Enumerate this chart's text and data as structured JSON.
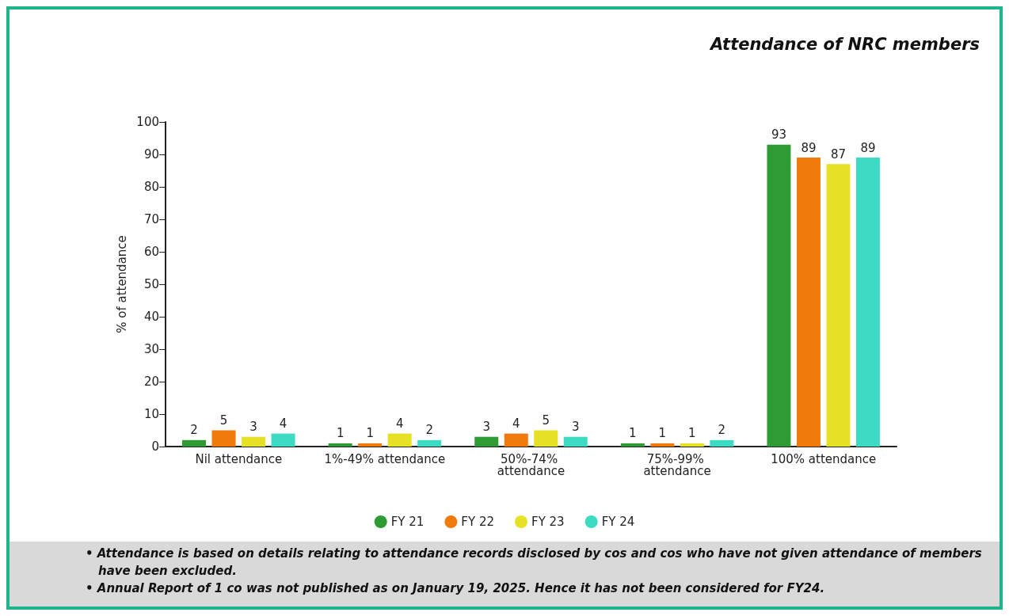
{
  "chart_data": {
    "type": "bar",
    "title": "Attendance of NRC members",
    "ylabel": "% of attendance",
    "categories": [
      "Nil attendance",
      "1%-49% attendance",
      "50%-74% attendance",
      "75%-99% attendance",
      "100% attendance"
    ],
    "series": [
      {
        "name": "FY 21",
        "color": "#2e9b35",
        "values": [
          2,
          1,
          3,
          1,
          93
        ]
      },
      {
        "name": "FY 22",
        "color": "#f07a0c",
        "values": [
          5,
          1,
          4,
          1,
          89
        ]
      },
      {
        "name": "FY 23",
        "color": "#e6e125",
        "values": [
          3,
          4,
          5,
          1,
          87
        ]
      },
      {
        "name": "FY 24",
        "color": "#3ddbc3",
        "values": [
          4,
          2,
          3,
          2,
          89
        ]
      }
    ],
    "ylim": [
      0,
      100
    ],
    "yticks": [
      0,
      10,
      20,
      30,
      40,
      50,
      60,
      70,
      80,
      90,
      100
    ],
    "grid": false,
    "legend": "bottom",
    "data_labels": true,
    "annotations": [
      "• Attendance is based on details relating to attendance records disclosed by cos and cos who have not given attendance of members have been excluded.",
      "• Annual Report of 1 co was not published as on January 19, 2025. Hence it has not been considered for FY24."
    ]
  }
}
